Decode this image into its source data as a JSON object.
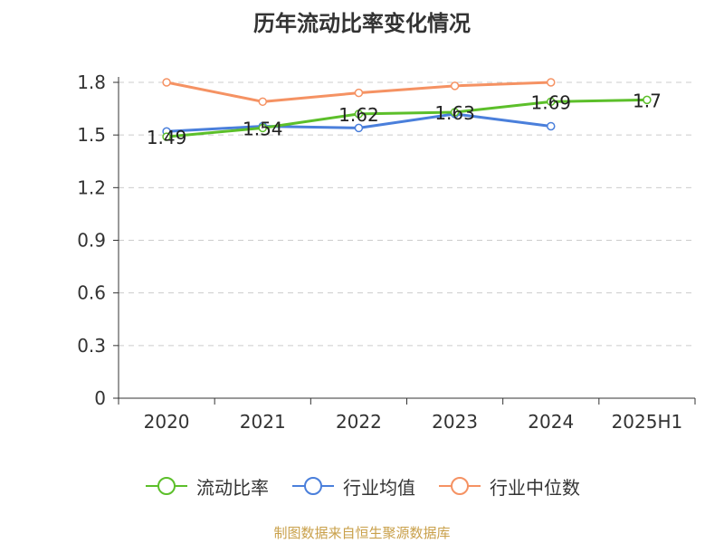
{
  "chart_data": {
    "type": "line",
    "title": "历年流动比率变化情况",
    "categories": [
      "2020",
      "2021",
      "2022",
      "2023",
      "2024",
      "2025H1"
    ],
    "ylim": [
      0,
      1.8
    ],
    "yticks": [
      "0",
      "0.3",
      "0.6",
      "0.9",
      "1.2",
      "1.5",
      "1.8"
    ],
    "grid": true,
    "legend_position": "bottom",
    "series": [
      {
        "name": "流动比率",
        "color": "#5cbf2a",
        "values": [
          1.49,
          1.54,
          1.62,
          1.63,
          1.69,
          1.7
        ],
        "labels": [
          "1.49",
          "1.54",
          "1.62",
          "1.63",
          "1.69",
          "1.7"
        ]
      },
      {
        "name": "行业均值",
        "color": "#4a7fdb",
        "values": [
          1.52,
          1.55,
          1.54,
          1.62,
          1.55,
          null
        ]
      },
      {
        "name": "行业中位数",
        "color": "#f59263",
        "values": [
          1.8,
          1.69,
          1.74,
          1.78,
          1.8,
          null
        ]
      }
    ]
  },
  "footer": {
    "source": "制图数据来自恒生聚源数据库"
  }
}
